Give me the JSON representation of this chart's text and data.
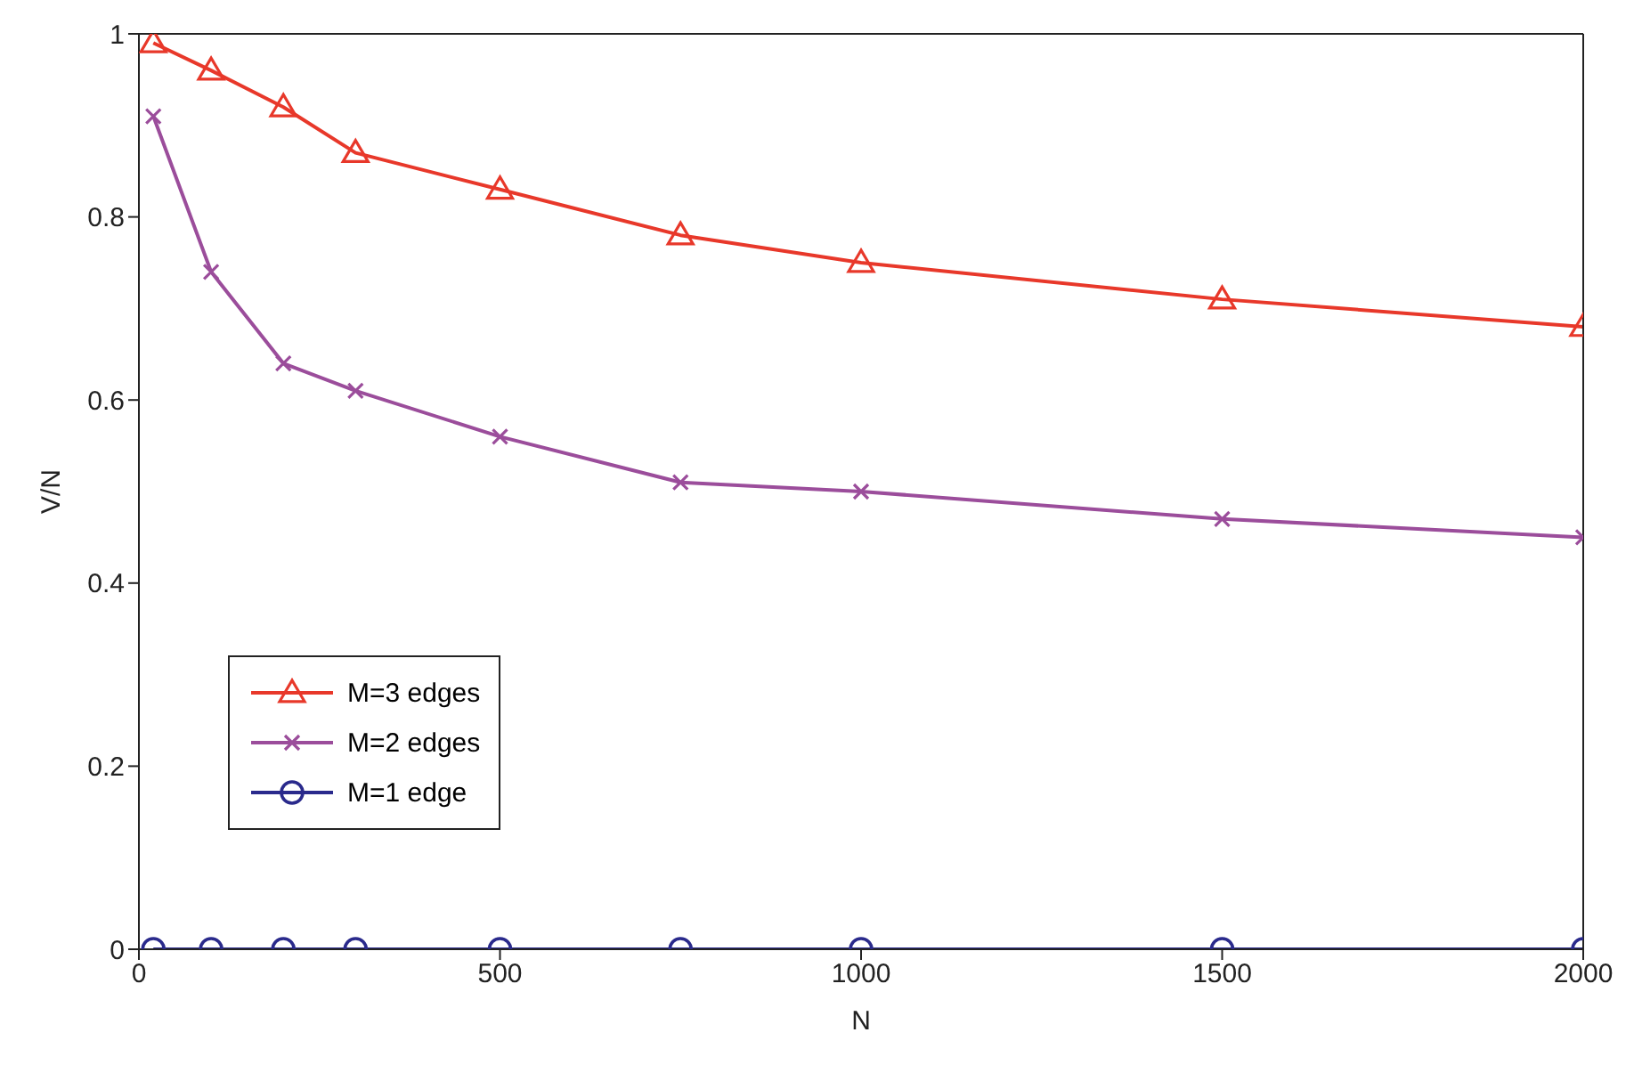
{
  "chart_data": {
    "type": "line",
    "xlabel": "N",
    "ylabel": "V/N",
    "x": [
      20,
      100,
      200,
      300,
      500,
      750,
      1000,
      1500,
      2000
    ],
    "series": [
      {
        "name": "M=3 edges",
        "color": "#e8382a",
        "marker": "triangle",
        "values": [
          0.99,
          0.96,
          0.92,
          0.87,
          0.83,
          0.78,
          0.75,
          0.71,
          0.68
        ]
      },
      {
        "name": "M=2 edges",
        "color": "#9b4d9b",
        "marker": "cross",
        "values": [
          0.91,
          0.74,
          0.64,
          0.61,
          0.56,
          0.51,
          0.5,
          0.47,
          0.45
        ]
      },
      {
        "name": "M=1 edge",
        "color": "#2a2a8c",
        "marker": "circle",
        "values": [
          0,
          0,
          0,
          0,
          0,
          0,
          0,
          0,
          0
        ]
      }
    ],
    "xlim": [
      0,
      2000
    ],
    "xticks": [
      0,
      500,
      1000,
      1500,
      2000
    ],
    "ylim": [
      0,
      1
    ],
    "yticks": [
      0,
      0.2,
      0.4,
      0.6,
      0.8,
      1
    ],
    "grid": false,
    "legend": "left",
    "line_style": "solid"
  }
}
